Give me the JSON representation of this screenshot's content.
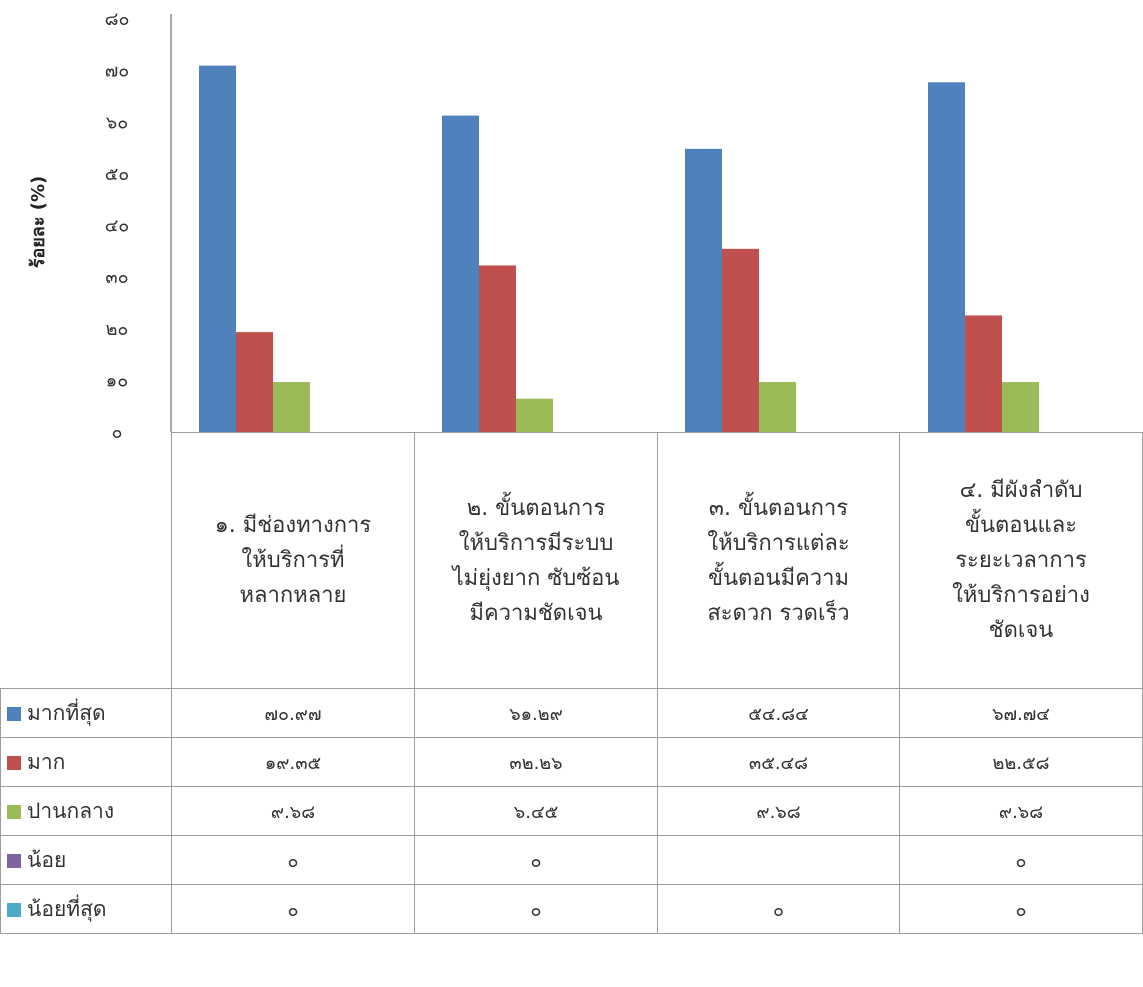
{
  "chart_data": {
    "type": "bar",
    "ylabel": "ร้อยละ (%)",
    "ylim": [
      0,
      80
    ],
    "yticks": [
      "๐",
      "๑๐",
      "๒๐",
      "๓๐",
      "๔๐",
      "๕๐",
      "๖๐",
      "๗๐",
      "๘๐"
    ],
    "categories": [
      "๑. มีช่องทางการให้บริการที่หลากหลาย",
      "๒. ขั้นตอนการให้บริการมีระบบ ไม่ยุ่งยาก ซับซ้อน มีความชัดเจน",
      "๓. ขั้นตอนการให้บริการแต่ละขั้นตอนมีความสะดวก รวดเร็ว",
      "๔. มีผังลำดับขั้นตอนและระยะเวลาการให้บริการอย่างชัดเจน"
    ],
    "series": [
      {
        "name": "มากที่สุด",
        "color": "#4f81bd",
        "values": [
          70.97,
          61.29,
          54.84,
          67.74
        ],
        "labels": [
          "๗๐.๙๗",
          "๖๑.๒๙",
          "๕๔.๘๔",
          "๖๗.๗๔"
        ]
      },
      {
        "name": "มาก",
        "color": "#c0504d",
        "values": [
          19.35,
          32.26,
          35.48,
          22.58
        ],
        "labels": [
          "๑๙.๓๕",
          "๓๒.๒๖",
          "๓๕.๔๘",
          "๒๒.๕๘"
        ]
      },
      {
        "name": "ปานกลาง",
        "color": "#9bbb59",
        "values": [
          9.68,
          6.45,
          9.68,
          9.68
        ],
        "labels": [
          "๙.๖๘",
          "๖.๔๕",
          "๙.๖๘",
          "๙.๖๘"
        ]
      },
      {
        "name": "น้อย",
        "color": "#8064a2",
        "values": [
          0,
          0,
          null,
          0
        ],
        "labels": [
          "๐",
          "๐",
          "",
          "๐"
        ]
      },
      {
        "name": "น้อยที่สุด",
        "color": "#4bacc6",
        "values": [
          0,
          0,
          0,
          0
        ],
        "labels": [
          "๐",
          "๐",
          "๐",
          "๐"
        ]
      }
    ],
    "legend": "data-table"
  },
  "category_lines": [
    [
      "๑. มีช่องทางการ",
      "ให้บริการที่",
      "หลากหลาย"
    ],
    [
      "๒. ขั้นตอนการ",
      "ให้บริการมีระบบ",
      "ไม่ยุ่งยาก ซับซ้อน",
      "มีความชัดเจน"
    ],
    [
      "๓. ขั้นตอนการ",
      "ให้บริการแต่ละ",
      "ขั้นตอนมีความ",
      "สะดวก รวดเร็ว"
    ],
    [
      "๔. มีผังลำดับ",
      "ขั้นตอนและ",
      "ระยะเวลาการ",
      "ให้บริการอย่าง",
      "ชัดเจน"
    ]
  ]
}
